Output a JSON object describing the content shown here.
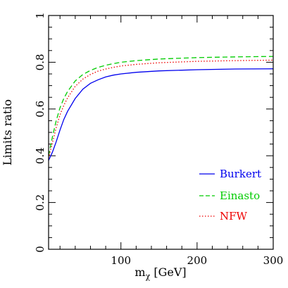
{
  "chart_data": {
    "type": "line",
    "title": "",
    "xlabel": "m",
    "xlabel_sub": "χ",
    "xlabel_unit": " [GeV]",
    "ylabel": "Limits ratio",
    "xlim": [
      5,
      300
    ],
    "ylim": [
      0,
      1
    ],
    "x_ticks": [
      100,
      200,
      300
    ],
    "y_ticks": [
      0,
      0.2,
      0.4,
      0.6,
      0.8,
      1
    ],
    "x_tick_labels": [
      "100",
      "200",
      "300"
    ],
    "y_tick_labels": [
      "0",
      "0.2",
      "0.4",
      "0.6",
      "0.8",
      "1"
    ],
    "legend_position": "bottom-right",
    "grid": false,
    "series": [
      {
        "name": "Burkert",
        "color": "#0000ee",
        "style": "solid",
        "x": [
          5,
          10,
          15,
          20,
          25,
          30,
          40,
          50,
          60,
          70,
          80,
          90,
          100,
          120,
          150,
          200,
          250,
          300
        ],
        "y": [
          0.38,
          0.415,
          0.46,
          0.51,
          0.555,
          0.59,
          0.645,
          0.685,
          0.71,
          0.725,
          0.737,
          0.745,
          0.75,
          0.757,
          0.763,
          0.768,
          0.771,
          0.772
        ]
      },
      {
        "name": "Einasto",
        "color": "#00cc00",
        "style": "dashed",
        "x": [
          5,
          10,
          15,
          20,
          25,
          30,
          40,
          50,
          60,
          70,
          80,
          90,
          100,
          120,
          150,
          200,
          250,
          300
        ],
        "y": [
          0.4,
          0.48,
          0.55,
          0.605,
          0.645,
          0.675,
          0.72,
          0.748,
          0.765,
          0.778,
          0.787,
          0.794,
          0.8,
          0.807,
          0.814,
          0.82,
          0.823,
          0.825
        ]
      },
      {
        "name": "NFW",
        "color": "#ee0000",
        "style": "dotted",
        "x": [
          5,
          10,
          15,
          20,
          25,
          30,
          40,
          50,
          60,
          70,
          80,
          90,
          100,
          120,
          150,
          200,
          250,
          300
        ],
        "y": [
          0.39,
          0.455,
          0.52,
          0.575,
          0.615,
          0.648,
          0.697,
          0.728,
          0.748,
          0.762,
          0.771,
          0.778,
          0.784,
          0.791,
          0.798,
          0.804,
          0.807,
          0.809
        ]
      }
    ]
  }
}
